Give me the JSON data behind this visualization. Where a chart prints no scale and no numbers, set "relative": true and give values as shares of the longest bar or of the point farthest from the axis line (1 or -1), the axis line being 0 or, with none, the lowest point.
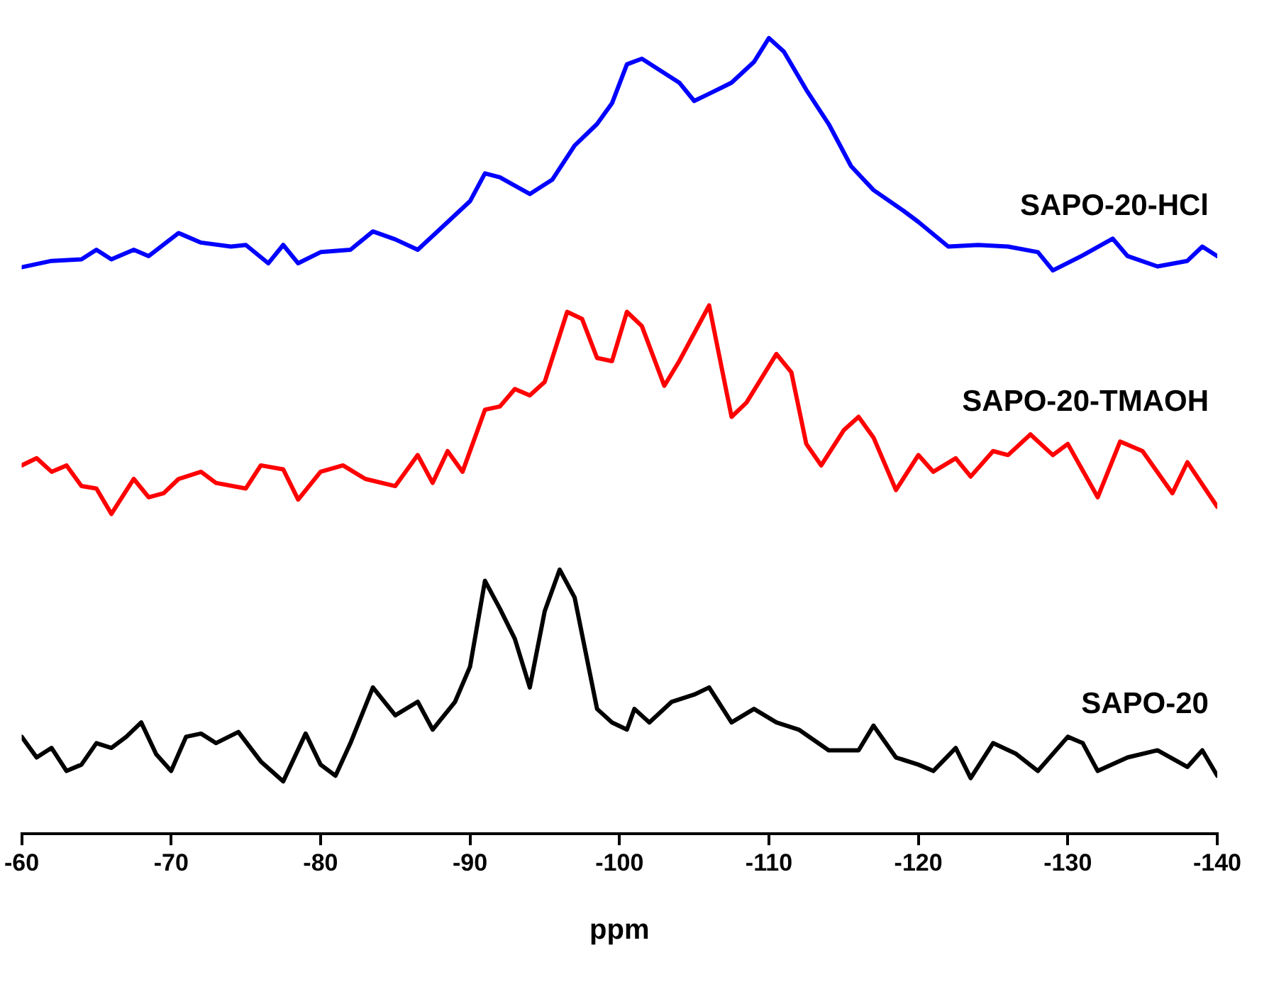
{
  "chart_data": {
    "type": "line",
    "xlabel": "ppm",
    "relative": true,
    "xlim": [
      -60,
      -140
    ],
    "xticks": [
      -60,
      -70,
      -80,
      -90,
      -100,
      -110,
      -120,
      -130,
      -140
    ],
    "grid": false,
    "legend": false,
    "marker": "none",
    "line_style": "solid",
    "series": [
      {
        "name": "SAPO-20-HCl",
        "color": "#0000ff",
        "x": [
          -60,
          -62,
          -64,
          -65,
          -66,
          -67.5,
          -68.5,
          -70.5,
          -72,
          -74,
          -75,
          -76.5,
          -77.5,
          -78.5,
          -80,
          -82,
          -83.5,
          -85,
          -86.5,
          -88,
          -90,
          -91,
          -92,
          -94,
          -95.5,
          -97,
          -98.5,
          -99.5,
          -100.5,
          -101.5,
          -102.5,
          -104,
          -105,
          -106,
          -107.5,
          -109,
          -110,
          -111,
          -112.5,
          -114,
          -115.5,
          -117,
          -119,
          -120,
          -122,
          -124,
          -126,
          -128,
          -129,
          -131,
          -133,
          -134,
          -136,
          -138,
          -139,
          -140
        ],
        "values": [
          0.712,
          0.72,
          0.722,
          0.734,
          0.722,
          0.734,
          0.726,
          0.755,
          0.743,
          0.738,
          0.74,
          0.717,
          0.74,
          0.717,
          0.731,
          0.734,
          0.757,
          0.747,
          0.734,
          0.76,
          0.795,
          0.83,
          0.825,
          0.804,
          0.822,
          0.865,
          0.892,
          0.918,
          0.967,
          0.974,
          0.962,
          0.944,
          0.921,
          0.93,
          0.944,
          0.97,
          1.0,
          0.983,
          0.935,
          0.892,
          0.839,
          0.809,
          0.783,
          0.769,
          0.738,
          0.74,
          0.738,
          0.731,
          0.708,
          0.727,
          0.748,
          0.726,
          0.713,
          0.72,
          0.738,
          0.726
        ]
      },
      {
        "name": "SAPO-20-TMAOH",
        "color": "#ff0000",
        "x": [
          -60,
          -61,
          -62,
          -63,
          -64,
          -65,
          -66,
          -67.5,
          -68.5,
          -69.5,
          -70.5,
          -72,
          -73,
          -75,
          -76,
          -77.5,
          -78.5,
          -80,
          -81.5,
          -83,
          -85,
          -86.5,
          -87.5,
          -88.5,
          -89.5,
          -91,
          -92,
          -93,
          -94,
          -95,
          -96.5,
          -97.5,
          -98.5,
          -99.5,
          -100.5,
          -101.5,
          -103,
          -104,
          -105,
          -106,
          -107.5,
          -108.5,
          -110.5,
          -111.5,
          -112.5,
          -113.5,
          -115,
          -116,
          -117,
          -118.5,
          -120,
          -121,
          -122.5,
          -123.5,
          -125,
          -126,
          -127.5,
          -129,
          -130,
          -132,
          -133.5,
          -135,
          -137,
          -138,
          -140
        ],
        "values": [
          0.463,
          0.472,
          0.455,
          0.463,
          0.437,
          0.434,
          0.402,
          0.446,
          0.423,
          0.428,
          0.446,
          0.455,
          0.441,
          0.434,
          0.463,
          0.458,
          0.42,
          0.455,
          0.463,
          0.446,
          0.437,
          0.476,
          0.441,
          0.481,
          0.455,
          0.533,
          0.537,
          0.559,
          0.551,
          0.568,
          0.656,
          0.647,
          0.598,
          0.594,
          0.656,
          0.638,
          0.563,
          0.594,
          0.629,
          0.664,
          0.524,
          0.542,
          0.603,
          0.58,
          0.49,
          0.463,
          0.507,
          0.524,
          0.498,
          0.432,
          0.476,
          0.455,
          0.472,
          0.449,
          0.481,
          0.476,
          0.502,
          0.476,
          0.49,
          0.423,
          0.493,
          0.481,
          0.428,
          0.467,
          0.411
        ]
      },
      {
        "name": "SAPO-20",
        "color": "#000000",
        "x": [
          -60,
          -61,
          -62,
          -63,
          -64,
          -65,
          -66,
          -67,
          -68,
          -69,
          -70,
          -71,
          -72,
          -73,
          -74.5,
          -76,
          -77.5,
          -79,
          -80,
          -81,
          -82,
          -83.5,
          -85,
          -86.5,
          -87.5,
          -89,
          -90,
          -91,
          -92,
          -93,
          -94,
          -95,
          -96,
          -97,
          -98.5,
          -99.5,
          -100.5,
          -101,
          -102,
          -103.5,
          -105,
          -106,
          -107.5,
          -109,
          -110.5,
          -112,
          -114,
          -116,
          -117,
          -118.5,
          -120,
          -121,
          -122.5,
          -123.5,
          -125,
          -126.5,
          -128,
          -130,
          -131,
          -132,
          -134,
          -136,
          -138,
          -139,
          -140
        ],
        "values": [
          0.122,
          0.096,
          0.108,
          0.079,
          0.087,
          0.114,
          0.108,
          0.122,
          0.14,
          0.1,
          0.079,
          0.122,
          0.126,
          0.114,
          0.128,
          0.091,
          0.066,
          0.126,
          0.087,
          0.073,
          0.114,
          0.184,
          0.149,
          0.166,
          0.131,
          0.166,
          0.21,
          0.318,
          0.283,
          0.245,
          0.184,
          0.28,
          0.332,
          0.297,
          0.157,
          0.14,
          0.131,
          0.157,
          0.14,
          0.166,
          0.175,
          0.184,
          0.14,
          0.157,
          0.14,
          0.131,
          0.105,
          0.105,
          0.136,
          0.096,
          0.087,
          0.079,
          0.108,
          0.07,
          0.114,
          0.101,
          0.079,
          0.122,
          0.114,
          0.079,
          0.096,
          0.105,
          0.084,
          0.105,
          0.073
        ]
      }
    ]
  }
}
